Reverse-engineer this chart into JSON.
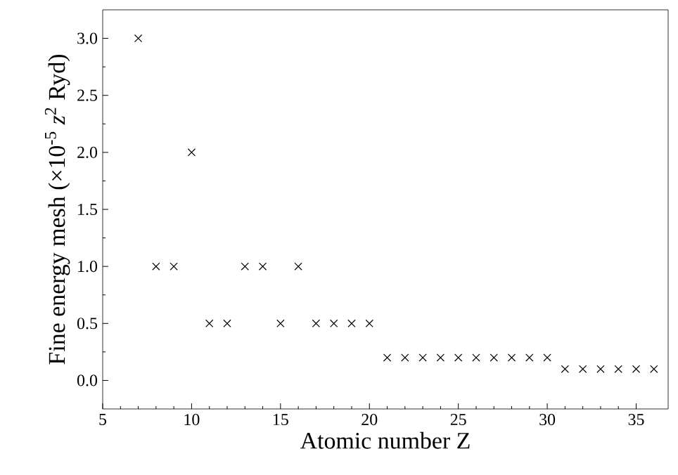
{
  "chart_data": {
    "type": "scatter",
    "xlabel": "Atomic number Z",
    "ylabel": "Fine energy mesh (×10$^{-5}$ *z*$^{2}$ Ryd)",
    "x": [
      7,
      8,
      9,
      10,
      11,
      12,
      13,
      14,
      15,
      16,
      17,
      18,
      19,
      20,
      21,
      22,
      23,
      24,
      25,
      26,
      27,
      28,
      29,
      30,
      31,
      32,
      33,
      34,
      35,
      36
    ],
    "series": [
      {
        "color": "#000000",
        "values": [
          3.0,
          1.0,
          1.0,
          2.0,
          0.5,
          0.5,
          1.0,
          1.0,
          0.5,
          1.0,
          0.5,
          0.5,
          0.5,
          0.5,
          0.2,
          0.2,
          0.2,
          0.2,
          0.2,
          0.2,
          0.2,
          0.2,
          0.2,
          0.2,
          0.1,
          0.1,
          0.1,
          0.1,
          0.1,
          0.1
        ]
      }
    ],
    "marker": "cross",
    "xlim": [
      5,
      36.8
    ],
    "ylim": [
      -0.25,
      3.25
    ],
    "xticks": [
      5,
      10,
      15,
      20,
      25,
      30,
      35
    ],
    "yticks": [
      {
        "value": 0,
        "label": "0.0"
      },
      {
        "value": 0.5,
        "label": "0.5"
      },
      {
        "value": 1,
        "label": "1.0"
      },
      {
        "value": 1.5,
        "label": "1.5"
      },
      {
        "value": 2,
        "label": "2.0"
      },
      {
        "value": 2.5,
        "label": "2.5"
      },
      {
        "value": 3,
        "label": "3.0"
      }
    ]
  }
}
